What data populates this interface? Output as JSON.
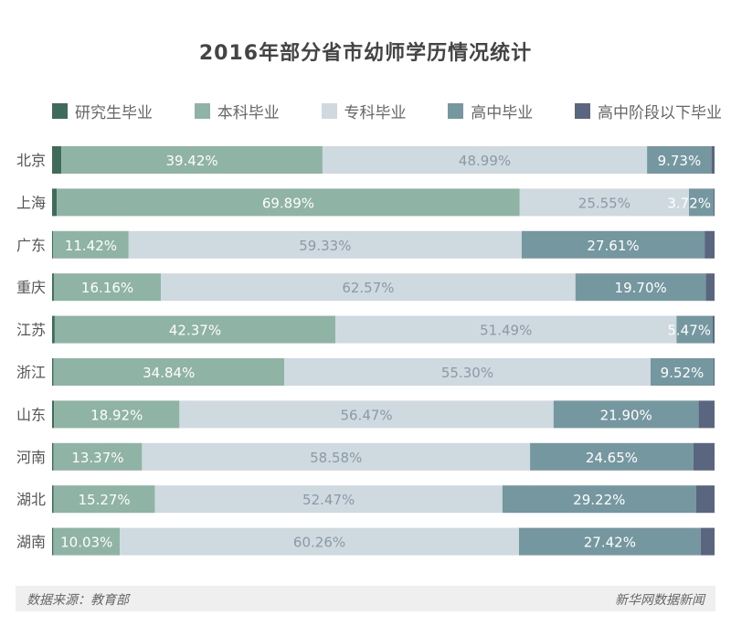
{
  "chart_data": {
    "type": "bar",
    "orientation": "horizontal",
    "stacked": "percent",
    "title": "2016年部分省市幼师学历情况统计",
    "categories": [
      "北京",
      "上海",
      "广东",
      "重庆",
      "江苏",
      "浙江",
      "山东",
      "河南",
      "湖北",
      "湖南"
    ],
    "series": [
      {
        "name": "研究生毕业",
        "color": "#3f6b5a",
        "values": [
          1.4,
          0.7,
          0.14,
          0.27,
          0.4,
          0.2,
          0.3,
          0.2,
          0.24,
          0.19
        ],
        "labels": [
          "",
          "",
          "",
          "",
          "",
          "",
          "",
          "",
          "",
          ""
        ],
        "label_color": "#ffffff"
      },
      {
        "name": "本科毕业",
        "color": "#8fb3a4",
        "values": [
          39.42,
          69.89,
          11.42,
          16.16,
          42.37,
          34.84,
          18.92,
          13.37,
          15.27,
          10.03
        ],
        "labels": [
          "39.42%",
          "69.89%",
          "11.42%",
          "16.16%",
          "42.37%",
          "34.84%",
          "18.92%",
          "13.37%",
          "15.27%",
          "10.03%"
        ],
        "label_color": "#ffffff"
      },
      {
        "name": "专科毕业",
        "color": "#cfd9e0",
        "values": [
          48.99,
          25.55,
          59.33,
          62.57,
          51.49,
          55.3,
          56.47,
          58.58,
          52.47,
          60.26
        ],
        "labels": [
          "48.99%",
          "25.55%",
          "59.33%",
          "62.57%",
          "51.49%",
          "55.30%",
          "56.47%",
          "58.58%",
          "52.47%",
          "60.26%"
        ],
        "label_color": "#8a9aa6"
      },
      {
        "name": "高中毕业",
        "color": "#7597a0",
        "values": [
          9.73,
          3.72,
          27.61,
          19.7,
          5.47,
          9.52,
          21.9,
          24.65,
          29.22,
          27.42
        ],
        "labels": [
          "9.73%",
          "3.72%",
          "27.61%",
          "19.70%",
          "5.47%",
          "9.52%",
          "21.90%",
          "24.65%",
          "29.22%",
          "27.42%"
        ],
        "label_color": "#ffffff"
      },
      {
        "name": "高中阶段以下毕业",
        "color": "#5a6680",
        "values": [
          0.46,
          0.14,
          1.5,
          1.3,
          0.27,
          0.14,
          2.4,
          3.2,
          2.8,
          2.1
        ],
        "labels": [
          "",
          "",
          "",
          "",
          "",
          "",
          "",
          "",
          "",
          ""
        ],
        "label_color": "#ffffff"
      }
    ],
    "xlim": [
      0,
      100
    ],
    "legend": "top",
    "grid": false
  },
  "footer": {
    "source": "数据来源：教育部",
    "credit": "新华网数据新闻"
  }
}
